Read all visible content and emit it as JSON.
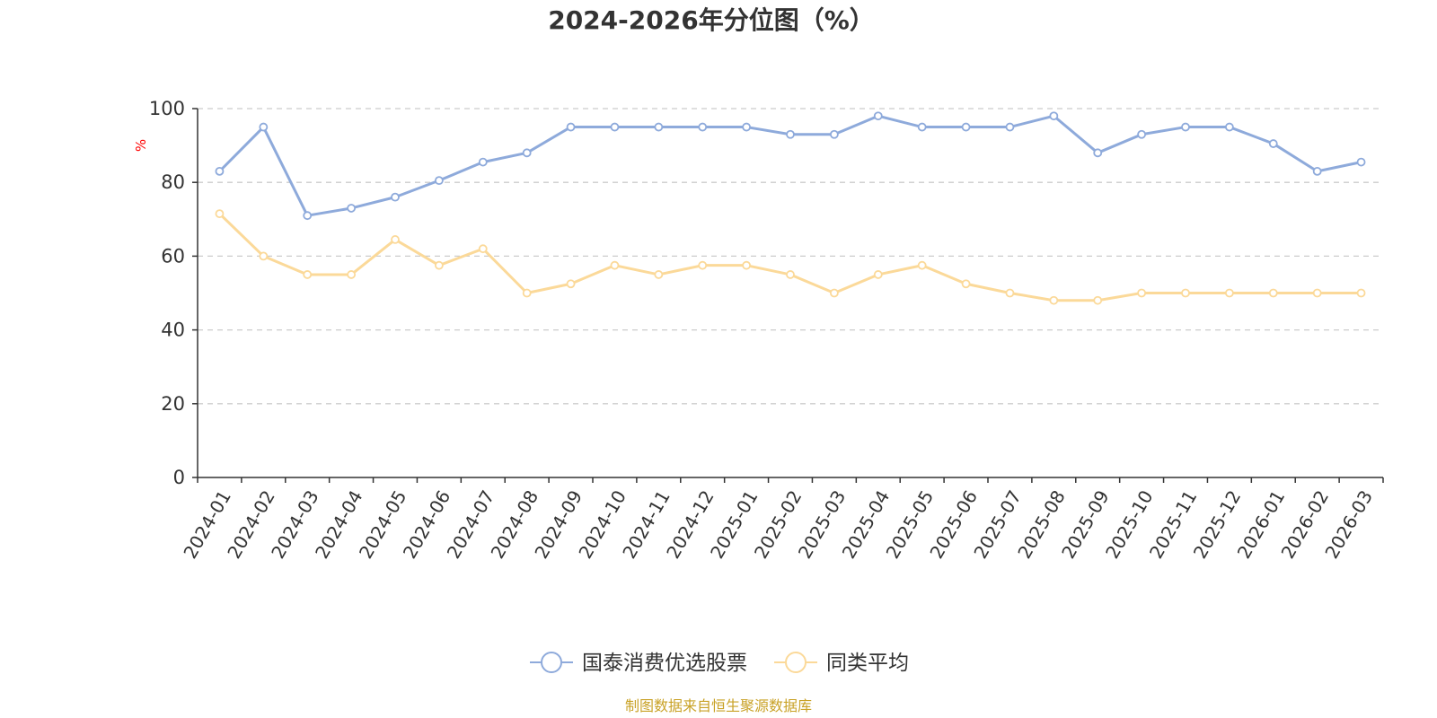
{
  "colors": {
    "series1": "#8eaadb",
    "series2": "#fbd999",
    "axis": "#333333",
    "grid": "#cccccc",
    "ylabel": "#ff0000",
    "source": "#c9a227"
  },
  "chart_data": {
    "type": "line",
    "title": "2024-2026年分位图（%）",
    "ylabel": "%",
    "xlabel": "",
    "ylim": [
      0,
      100
    ],
    "yticks": [
      0,
      20,
      40,
      60,
      80,
      100
    ],
    "grid": "horizontal-dashed",
    "legend": "bottom-center",
    "categories": [
      "2024-01",
      "2024-02",
      "2024-03",
      "2024-04",
      "2024-05",
      "2024-06",
      "2024-07",
      "2024-08",
      "2024-09",
      "2024-10",
      "2024-11",
      "2024-12",
      "2025-01",
      "2025-02",
      "2025-03",
      "2025-04",
      "2025-05",
      "2025-06",
      "2025-07",
      "2025-08",
      "2025-09",
      "2025-10",
      "2025-11",
      "2025-12",
      "2026-01",
      "2026-02",
      "2026-03"
    ],
    "series": [
      {
        "name": "国泰消费优选股票",
        "color": "#8eaadb",
        "values": [
          83,
          95,
          71,
          73,
          76,
          80.5,
          85.5,
          88,
          95,
          95,
          95,
          95,
          95,
          93,
          93,
          98,
          95,
          95,
          95,
          98,
          88,
          93,
          95,
          95,
          90.5,
          83,
          85.5
        ]
      },
      {
        "name": "同类平均",
        "color": "#fbd999",
        "values": [
          71.5,
          60,
          55,
          55,
          64.5,
          57.5,
          62,
          50,
          52.5,
          57.5,
          55,
          57.5,
          57.5,
          55,
          50,
          55,
          57.5,
          52.5,
          50,
          48,
          48,
          50,
          50,
          50,
          50,
          50,
          50
        ]
      }
    ],
    "source": "制图数据来自恒生聚源数据库"
  }
}
